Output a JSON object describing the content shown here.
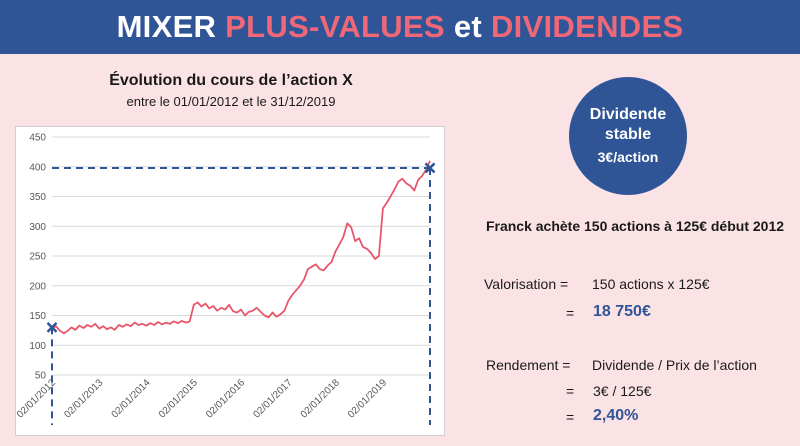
{
  "banner": {
    "part1": "MIXER",
    "part2": "PLUS-VALUES",
    "part3": "et",
    "part4": "DIVIDENDES"
  },
  "colors": {
    "banner_bg": "#2f5597",
    "accent_red": "#f06878",
    "page_bg": "#fbe3e5",
    "line": "#e8566a",
    "marker": "#2f5597"
  },
  "dividend_badge": {
    "line1": "Dividende",
    "line2": "stable",
    "line3": "3€/action"
  },
  "headline": "Franck achète 150 actions à 125€ début 2012",
  "valuation": {
    "label": "Valorisation =",
    "formula": "150 actions x 125€",
    "eq": "=",
    "result": "18 750€"
  },
  "yield": {
    "label": "Rendement =",
    "formula": "Dividende / Prix de l’action",
    "eq1": "=",
    "step": "3€ / 125€",
    "eq2": "=",
    "result": "2,40%"
  },
  "chart_data": {
    "type": "line",
    "title": "Évolution du cours de l’action X",
    "subtitle": "entre le 01/01/2012 et le 31/12/2019",
    "xlabel": "",
    "ylabel": "",
    "ylim": [
      50,
      450
    ],
    "y_ticks": [
      50,
      100,
      150,
      200,
      250,
      300,
      350,
      400,
      450
    ],
    "x_ticks": [
      "02/01/2012",
      "02/01/2013",
      "02/01/2014",
      "02/01/2015",
      "02/01/2016",
      "02/01/2017",
      "02/01/2018",
      "02/01/2019"
    ],
    "x_range": [
      "2012-01-02",
      "2019-12-31"
    ],
    "grid": true,
    "legend": "none",
    "series": [
      {
        "x": [
          "2012-01-02",
          "2012-02-01",
          "2012-03-01",
          "2012-04-01",
          "2012-05-01",
          "2012-06-01",
          "2012-07-01",
          "2012-08-01",
          "2012-09-01",
          "2012-10-01",
          "2012-11-01",
          "2012-12-01",
          "2013-01-01",
          "2013-02-01",
          "2013-03-01",
          "2013-04-01",
          "2013-05-01",
          "2013-06-01",
          "2013-07-01",
          "2013-08-01",
          "2013-09-01",
          "2013-10-01",
          "2013-11-01",
          "2013-12-01",
          "2014-01-01",
          "2014-02-01",
          "2014-03-01",
          "2014-04-01",
          "2014-05-01",
          "2014-06-01",
          "2014-07-01",
          "2014-08-01",
          "2014-09-01",
          "2014-10-01",
          "2014-11-01",
          "2014-12-01",
          "2015-01-01",
          "2015-02-01",
          "2015-03-01",
          "2015-04-01",
          "2015-05-01",
          "2015-06-01",
          "2015-07-01",
          "2015-08-01",
          "2015-09-01",
          "2015-10-01",
          "2015-11-01",
          "2015-12-01",
          "2016-01-01",
          "2016-02-01",
          "2016-03-01",
          "2016-04-01",
          "2016-05-01",
          "2016-06-01",
          "2016-07-01",
          "2016-08-01",
          "2016-09-01",
          "2016-10-01",
          "2016-11-01",
          "2016-12-01",
          "2017-01-01",
          "2017-02-01",
          "2017-03-01",
          "2017-04-01",
          "2017-05-01",
          "2017-06-01",
          "2017-07-01",
          "2017-08-01",
          "2017-09-01",
          "2017-10-01",
          "2017-11-01",
          "2017-12-01",
          "2018-01-01",
          "2018-02-01",
          "2018-03-01",
          "2018-04-01",
          "2018-05-01",
          "2018-06-01",
          "2018-07-01",
          "2018-08-01",
          "2018-09-01",
          "2018-10-01",
          "2018-11-01",
          "2018-12-01",
          "2019-01-01",
          "2019-02-01",
          "2019-03-01",
          "2019-04-01",
          "2019-05-01",
          "2019-06-01",
          "2019-07-01",
          "2019-08-01",
          "2019-09-01",
          "2019-10-01",
          "2019-11-01",
          "2019-12-01",
          "2019-12-31"
        ],
        "values": [
          128,
          132,
          125,
          120,
          124,
          130,
          126,
          133,
          129,
          134,
          131,
          136,
          128,
          132,
          127,
          130,
          126,
          134,
          131,
          135,
          132,
          138,
          134,
          136,
          133,
          137,
          134,
          139,
          135,
          138,
          136,
          140,
          137,
          141,
          138,
          140,
          168,
          172,
          165,
          170,
          162,
          166,
          158,
          163,
          160,
          168,
          157,
          155,
          160,
          150,
          156,
          158,
          163,
          156,
          150,
          147,
          155,
          148,
          152,
          158,
          175,
          185,
          192,
          200,
          210,
          228,
          232,
          236,
          228,
          226,
          234,
          240,
          258,
          270,
          282,
          305,
          298,
          275,
          280,
          265,
          262,
          255,
          245,
          250,
          330,
          340,
          350,
          362,
          375,
          380,
          372,
          368,
          360,
          378,
          385,
          395,
          410
        ]
      }
    ],
    "annotations": [
      {
        "x": "2012-01-02",
        "y": 130,
        "marker": "x"
      },
      {
        "x": "2019-12-31",
        "y": 398,
        "marker": "x"
      }
    ]
  }
}
